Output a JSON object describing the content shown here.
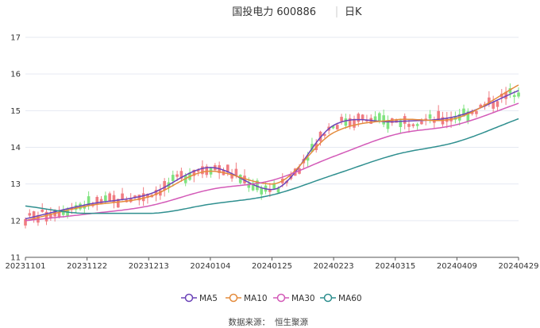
{
  "header": {
    "title": "国投电力 600886",
    "period": "日K"
  },
  "source": {
    "label": "数据来源：",
    "provider": "恒生聚源"
  },
  "colors": {
    "up": "#f07c82",
    "down": "#7fe37f",
    "grid": "#e6e9f2",
    "axis": "#555555"
  },
  "chart_data": {
    "type": "line",
    "title": "国投电力 600886 日K",
    "ylim": [
      11,
      17
    ],
    "yticks": [
      11,
      12,
      13,
      14,
      15,
      16,
      17
    ],
    "x_tick_labels": [
      "20231101",
      "20231122",
      "20231213",
      "20240104",
      "20240125",
      "20240223",
      "20240315",
      "20240409",
      "20240429"
    ],
    "grid": true,
    "legend_position": "bottom",
    "dates": [
      "20231101",
      "20231122",
      "20231213",
      "20240104",
      "20240125",
      "20240223",
      "20240315",
      "20240409",
      "20240429"
    ],
    "series": [
      {
        "name": "MA5",
        "color": "#6b43b8",
        "values": [
          12.05,
          12.44,
          12.72,
          13.45,
          12.85,
          14.6,
          14.7,
          14.85,
          15.55
        ]
      },
      {
        "name": "MA10",
        "color": "#e48b3c",
        "values": [
          12.0,
          12.4,
          12.65,
          13.35,
          13.0,
          14.4,
          14.75,
          14.8,
          15.7
        ]
      },
      {
        "name": "MA30",
        "color": "#d35ab8",
        "values": [
          12.0,
          12.18,
          12.4,
          12.85,
          13.1,
          13.75,
          14.35,
          14.62,
          15.2
        ]
      },
      {
        "name": "MA60",
        "color": "#2f8f8f",
        "values": [
          12.4,
          12.2,
          12.2,
          12.45,
          12.7,
          13.25,
          13.8,
          14.15,
          14.78
        ]
      }
    ]
  }
}
